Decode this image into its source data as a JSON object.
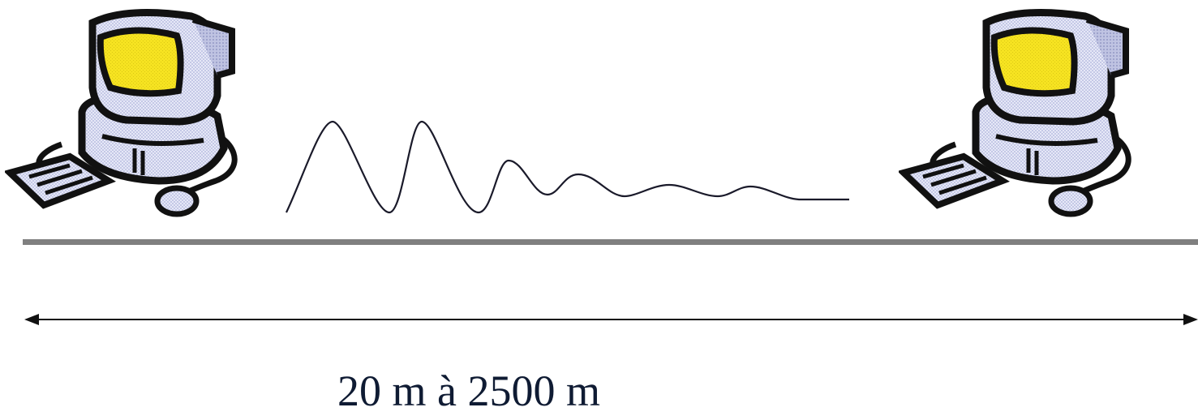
{
  "diagram": {
    "distance_label": "20 m à 2500 m",
    "computers": [
      {
        "icon": "computer-icon",
        "screen_color": "#f6e321"
      },
      {
        "icon": "computer-icon",
        "screen_color": "#f6e321"
      }
    ],
    "colors": {
      "cable": "#808080",
      "ink": "#111111",
      "body": "#d9dcf0",
      "label": "#0f1b33"
    }
  }
}
